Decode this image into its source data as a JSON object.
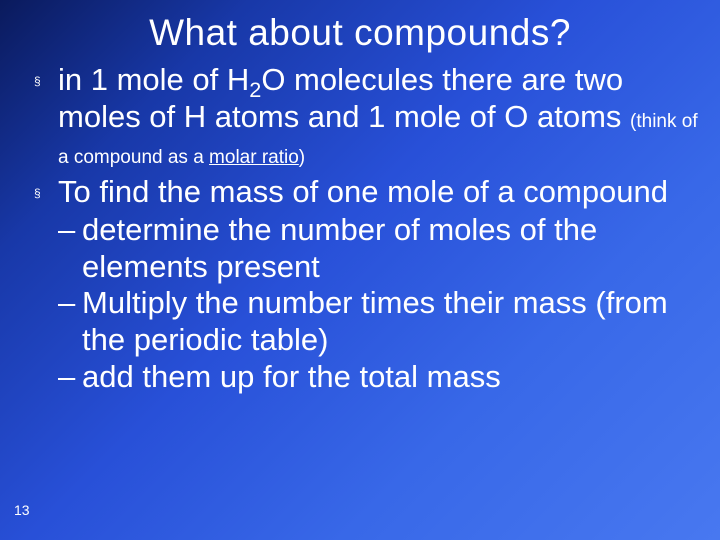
{
  "title": {
    "text": "What about compounds?",
    "fontsize": 37,
    "color": "#ffffff"
  },
  "body_fontsize": 31,
  "note_fontsize": 19,
  "bullets": [
    {
      "pre": "in 1 mole of H",
      "sub": "2",
      "mid": "O molecules there are two moles of H atoms and 1 mole of O atoms ",
      "note_pre": "(think of a compound as a ",
      "note_underline": "molar ratio",
      "note_post": ")"
    },
    {
      "text": "To find the mass of one mole of a compound",
      "subs": [
        "determine the number of moles of the elements present",
        "Multiply the number times their mass (from the periodic table)",
        "add them up for the total mass"
      ]
    }
  ],
  "slide_number": "13",
  "colors": {
    "text": "#ffffff",
    "bg_start": "#0a1a5c",
    "bg_end": "#4878f0"
  }
}
